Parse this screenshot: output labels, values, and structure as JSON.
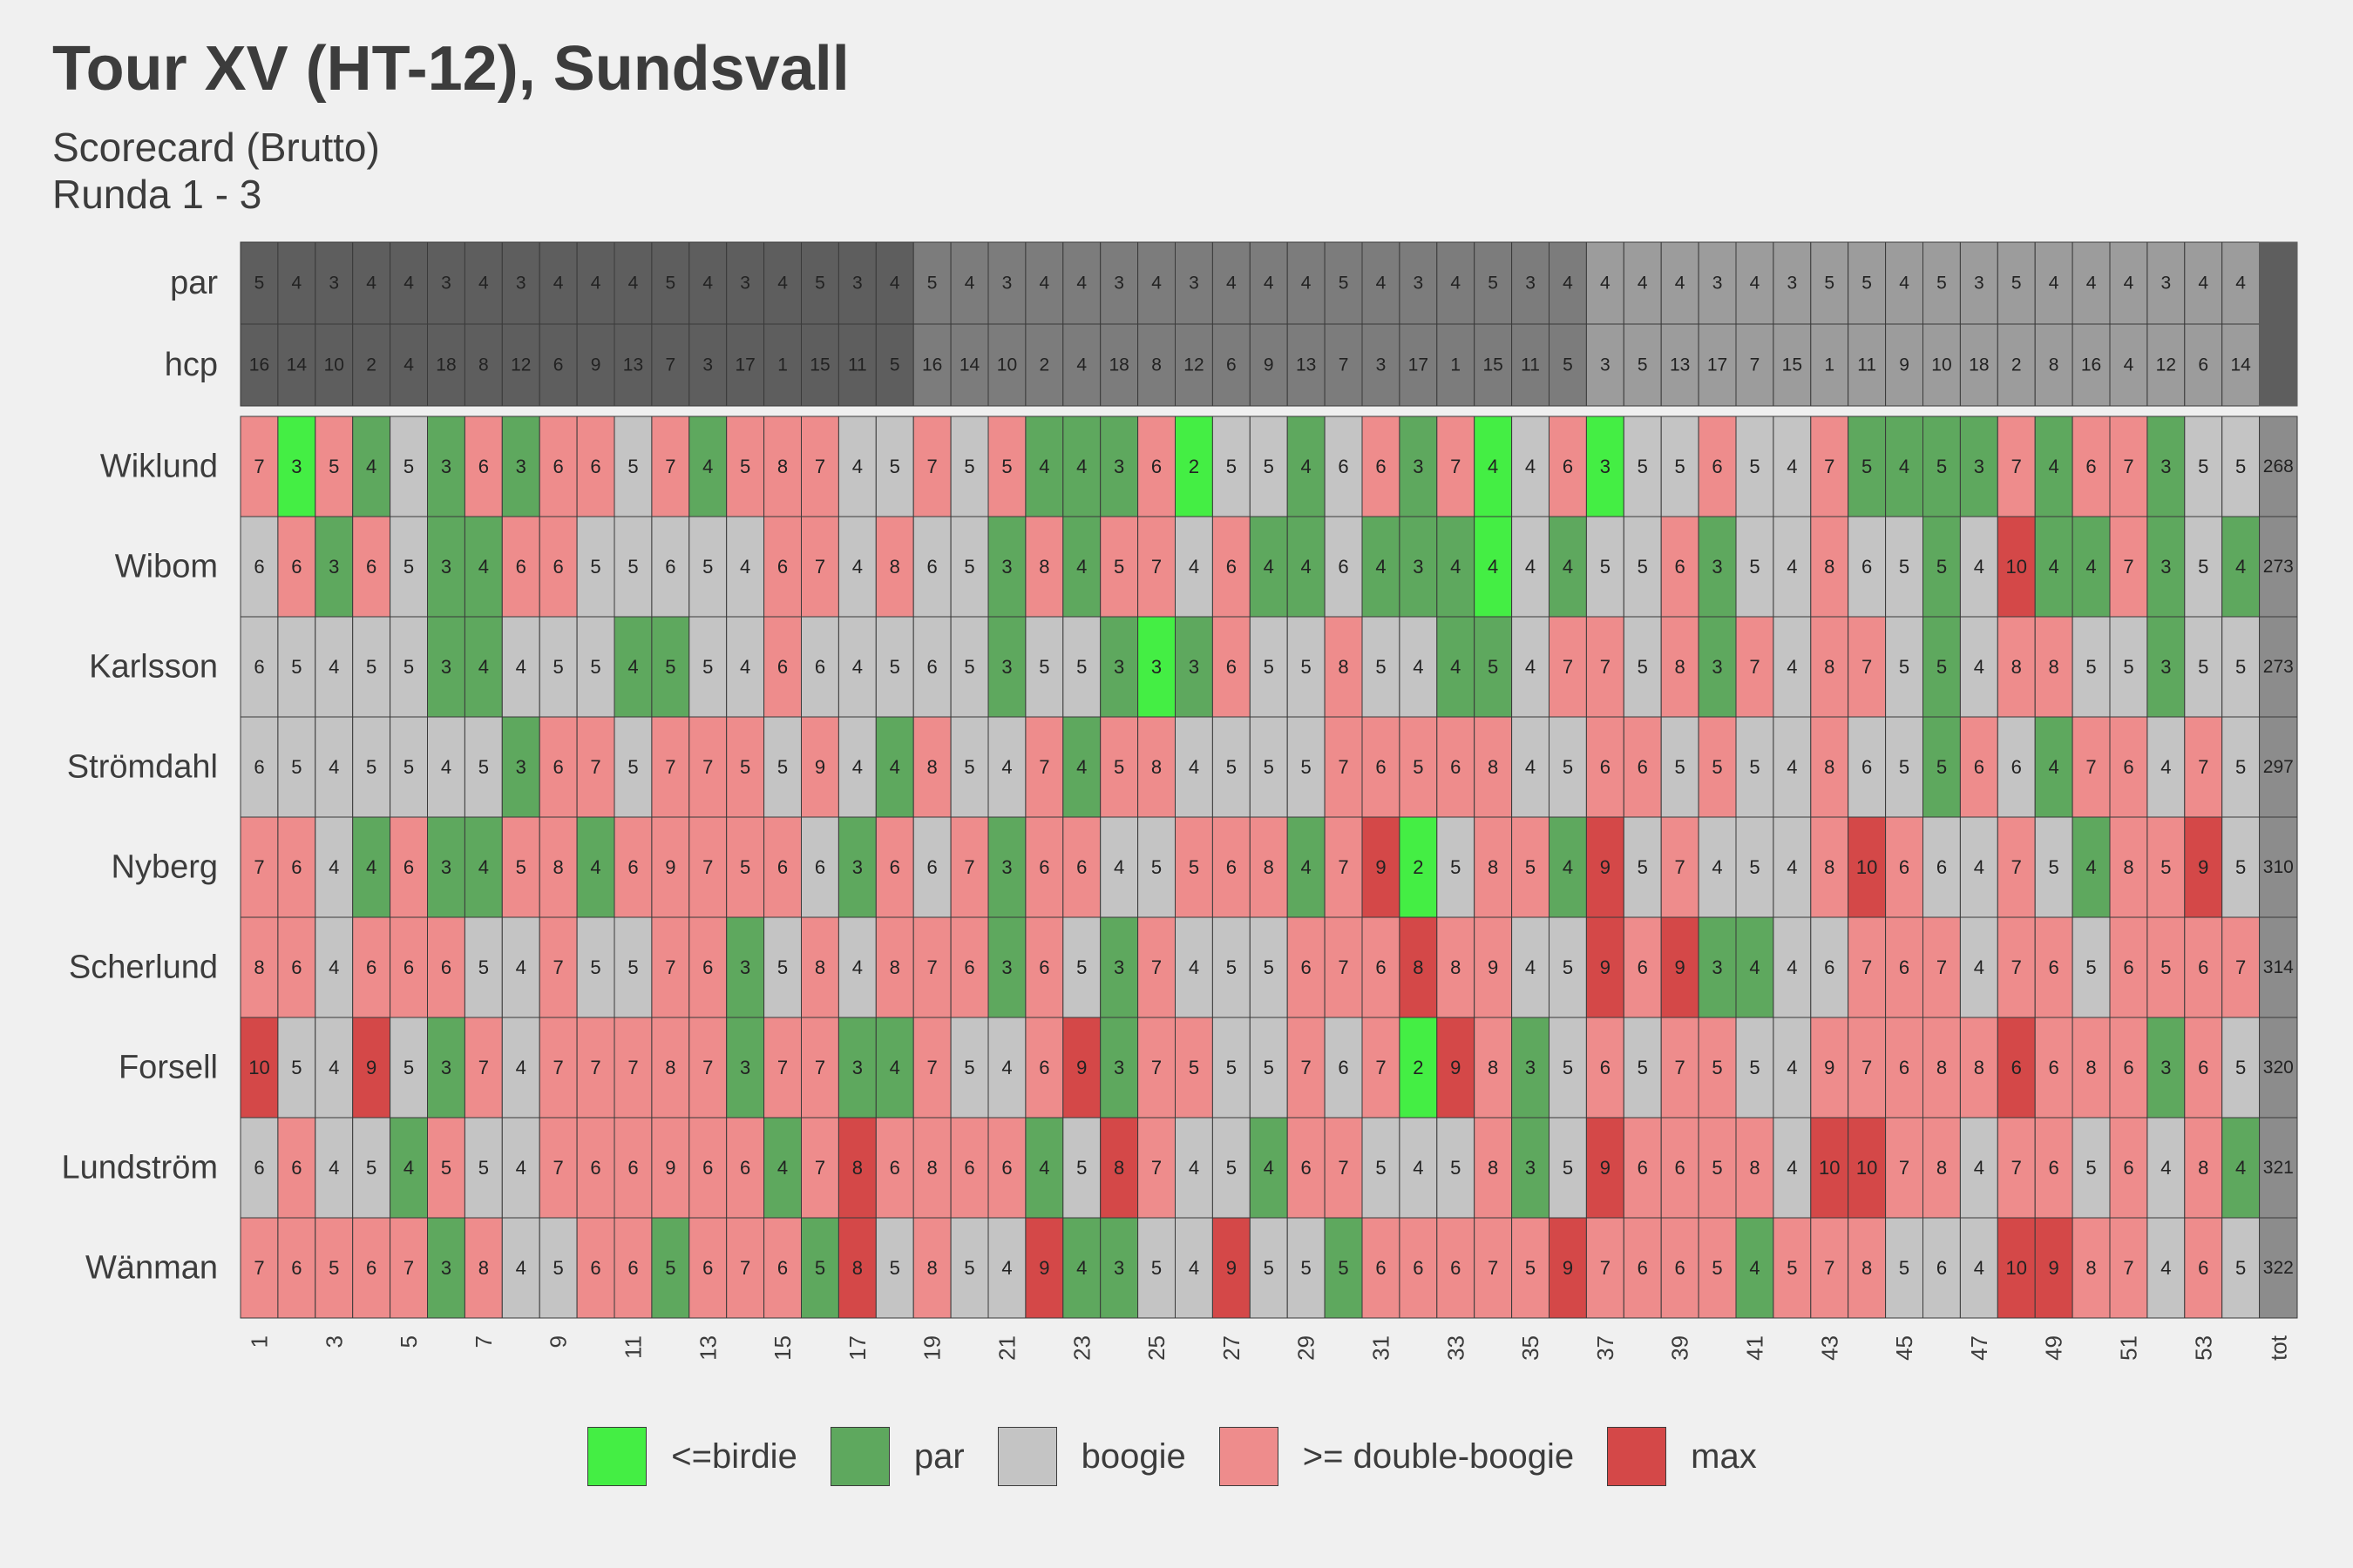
{
  "title": "Tour XV (HT-12), Sundsvall",
  "subtitle": "Scorecard (Brutto)\nRunda 1 - 3",
  "legend": [
    {
      "label": "<=birdie",
      "color": "#44ee44"
    },
    {
      "label": "par",
      "color": "#5ea85e"
    },
    {
      "label": "boogie",
      "color": "#c4c4c4"
    },
    {
      "label": ">= double-boogie",
      "color": "#ee8c8c"
    },
    {
      "label": "max",
      "color": "#d44848"
    }
  ],
  "chart_data": {
    "type": "heatmap",
    "x_tick_labels": [
      "1",
      "3",
      "5",
      "7",
      "9",
      "11",
      "13",
      "15",
      "17",
      "19",
      "21",
      "23",
      "25",
      "27",
      "29",
      "31",
      "33",
      "35",
      "37",
      "39",
      "41",
      "43",
      "45",
      "47",
      "49",
      "51",
      "53",
      "tot"
    ],
    "holes": [
      1,
      2,
      3,
      4,
      5,
      6,
      7,
      8,
      9,
      10,
      11,
      12,
      13,
      14,
      15,
      16,
      17,
      18,
      19,
      20,
      21,
      22,
      23,
      24,
      25,
      26,
      27,
      28,
      29,
      30,
      31,
      32,
      33,
      34,
      35,
      36,
      37,
      38,
      39,
      40,
      41,
      42,
      43,
      44,
      45,
      46,
      47,
      48,
      49,
      50,
      51,
      52,
      53,
      54
    ],
    "rounds": 3,
    "header_rows": [
      {
        "label": "par",
        "values": [
          5,
          4,
          3,
          4,
          4,
          3,
          4,
          3,
          4,
          4,
          4,
          5,
          4,
          3,
          4,
          5,
          3,
          4,
          5,
          4,
          3,
          4,
          4,
          3,
          4,
          3,
          4,
          4,
          4,
          5,
          4,
          3,
          4,
          5,
          3,
          4,
          4,
          4,
          4,
          3,
          4,
          3,
          5,
          5,
          4,
          5,
          3,
          5,
          4,
          4,
          4,
          3,
          4,
          4
        ]
      },
      {
        "label": "hcp",
        "values": [
          16,
          14,
          10,
          2,
          4,
          18,
          8,
          12,
          6,
          9,
          13,
          7,
          3,
          17,
          1,
          15,
          11,
          5,
          16,
          14,
          10,
          2,
          4,
          18,
          8,
          12,
          6,
          9,
          13,
          7,
          3,
          17,
          1,
          15,
          11,
          5,
          3,
          5,
          13,
          17,
          7,
          15,
          1,
          11,
          9,
          10,
          18,
          2,
          8,
          16,
          4,
          12,
          6,
          14
        ]
      }
    ],
    "players": [
      {
        "name": "Wiklund",
        "scores": [
          7,
          3,
          5,
          4,
          5,
          3,
          6,
          3,
          6,
          6,
          5,
          7,
          4,
          5,
          8,
          7,
          4,
          5,
          7,
          5,
          5,
          4,
          4,
          3,
          6,
          2,
          5,
          5,
          4,
          6,
          6,
          3,
          7,
          4,
          4,
          6,
          3,
          5,
          5,
          6,
          5,
          4,
          7,
          5,
          4,
          5,
          3,
          7,
          4,
          6,
          7,
          3,
          5,
          5
        ],
        "total": 268
      },
      {
        "name": "Wibom",
        "scores": [
          6,
          6,
          3,
          6,
          5,
          3,
          4,
          6,
          6,
          5,
          5,
          6,
          5,
          4,
          6,
          7,
          4,
          8,
          6,
          5,
          3,
          8,
          4,
          5,
          7,
          4,
          6,
          4,
          4,
          6,
          4,
          3,
          4,
          4,
          4,
          4,
          5,
          5,
          6,
          3,
          5,
          4,
          8,
          6,
          5,
          5,
          4,
          10,
          4,
          4,
          7,
          3,
          5,
          4
        ],
        "total": 273
      },
      {
        "name": "Karlsson",
        "scores": [
          6,
          5,
          4,
          5,
          5,
          3,
          4,
          4,
          5,
          5,
          4,
          5,
          5,
          4,
          6,
          6,
          4,
          5,
          6,
          5,
          3,
          5,
          5,
          3,
          3,
          3,
          6,
          5,
          5,
          8,
          5,
          4,
          4,
          5,
          4,
          7,
          7,
          5,
          8,
          3,
          7,
          4,
          8,
          7,
          5,
          5,
          4,
          8,
          8,
          5,
          5,
          3,
          5,
          5
        ],
        "total": 273
      },
      {
        "name": "Strömdahl",
        "scores": [
          6,
          5,
          4,
          5,
          5,
          4,
          5,
          3,
          6,
          7,
          5,
          7,
          7,
          5,
          5,
          9,
          4,
          4,
          8,
          5,
          4,
          7,
          4,
          5,
          8,
          4,
          5,
          5,
          5,
          7,
          6,
          5,
          6,
          8,
          4,
          5,
          6,
          6,
          5,
          5,
          5,
          4,
          8,
          6,
          5,
          5,
          6,
          6,
          4,
          7,
          6,
          4,
          7,
          5
        ],
        "total": 297
      },
      {
        "name": "Nyberg",
        "scores": [
          7,
          6,
          4,
          4,
          6,
          3,
          4,
          5,
          8,
          4,
          6,
          9,
          7,
          5,
          6,
          6,
          3,
          6,
          6,
          7,
          3,
          6,
          6,
          4,
          5,
          5,
          6,
          8,
          4,
          7,
          9,
          2,
          5,
          8,
          5,
          4,
          9,
          5,
          7,
          4,
          5,
          4,
          8,
          10,
          6,
          6,
          4,
          7,
          5,
          4,
          8,
          5,
          9,
          5
        ],
        "total": 310
      },
      {
        "name": "Scherlund",
        "scores": [
          8,
          6,
          4,
          6,
          6,
          6,
          5,
          4,
          7,
          5,
          5,
          7,
          6,
          3,
          5,
          8,
          4,
          8,
          7,
          6,
          3,
          6,
          5,
          3,
          7,
          4,
          5,
          5,
          6,
          7,
          6,
          8,
          8,
          9,
          4,
          5,
          9,
          6,
          9,
          3,
          4,
          4,
          6,
          7,
          6,
          7,
          4,
          7,
          6,
          5,
          6,
          5,
          6,
          7
        ],
        "total": 314
      },
      {
        "name": "Forsell",
        "scores": [
          10,
          5,
          4,
          9,
          5,
          3,
          7,
          4,
          7,
          7,
          7,
          8,
          7,
          3,
          7,
          7,
          3,
          4,
          7,
          5,
          4,
          6,
          9,
          3,
          7,
          5,
          5,
          5,
          7,
          6,
          7,
          2,
          9,
          8,
          3,
          5,
          6,
          5,
          7,
          5,
          5,
          4,
          9,
          7,
          6,
          8,
          8,
          6,
          6,
          8,
          6,
          3,
          6,
          5
        ],
        "total": 320
      },
      {
        "name": "Lundström",
        "scores": [
          6,
          6,
          4,
          5,
          4,
          5,
          5,
          4,
          7,
          6,
          6,
          9,
          6,
          6,
          4,
          7,
          8,
          6,
          8,
          6,
          6,
          4,
          5,
          8,
          7,
          4,
          5,
          4,
          6,
          7,
          5,
          4,
          5,
          8,
          3,
          5,
          9,
          6,
          6,
          5,
          8,
          4,
          10,
          10,
          7,
          8,
          4,
          7,
          6,
          5,
          6,
          4,
          8,
          4
        ],
        "total": 321
      },
      {
        "name": "Wänman",
        "scores": [
          7,
          6,
          5,
          6,
          7,
          3,
          8,
          4,
          5,
          6,
          6,
          5,
          6,
          7,
          6,
          5,
          8,
          5,
          8,
          5,
          4,
          9,
          4,
          3,
          5,
          4,
          9,
          5,
          5,
          5,
          6,
          6,
          6,
          7,
          5,
          9,
          7,
          6,
          6,
          5,
          4,
          5,
          7,
          8,
          5,
          6,
          4,
          10,
          9,
          8,
          7,
          4,
          6,
          5
        ],
        "total": 322
      }
    ],
    "max_cells": [
      [],
      [
        48
      ],
      [],
      [],
      [
        31,
        37,
        44,
        53
      ],
      [
        32,
        37,
        39
      ],
      [
        1,
        4,
        23,
        33,
        48
      ],
      [
        17,
        24,
        37,
        43,
        44
      ],
      [
        17,
        22,
        27,
        36,
        48,
        49
      ]
    ]
  }
}
